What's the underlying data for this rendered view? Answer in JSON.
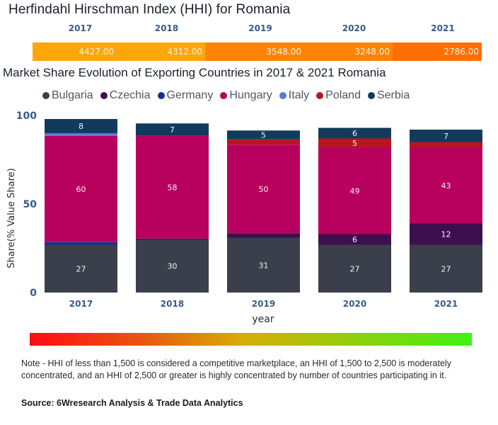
{
  "hhi": {
    "title": "Herfindahl Hirschman Index (HHI) for Romania",
    "cells": [
      {
        "year": "2017",
        "value": "4427.00",
        "color": "#fca60a"
      },
      {
        "year": "2018",
        "value": "4312.00",
        "color": "#fca60a"
      },
      {
        "year": "2019",
        "value": "3548.00",
        "color": "#fd8405"
      },
      {
        "year": "2020",
        "value": "3248.00",
        "color": "#fd8405"
      },
      {
        "year": "2021",
        "value": "2786.00",
        "color": "#fe6f02"
      }
    ]
  },
  "chart_data": {
    "type": "bar",
    "stacked": true,
    "title": "Market Share Evolution of Exporting Countries in 2017 & 2021 Romania",
    "xlabel": "year",
    "ylabel": "Share(% Value Share)",
    "ylim": [
      0,
      100
    ],
    "yticks": [
      "0",
      "50",
      "100"
    ],
    "categories": [
      "2017",
      "2018",
      "2019",
      "2020",
      "2021"
    ],
    "legend_position": "top",
    "series": [
      {
        "name": "Bulgaria",
        "color": "#3a3f4b",
        "values": [
          27,
          30,
          31,
          27,
          27
        ],
        "labels": [
          "27",
          "30",
          "31",
          "27",
          "27"
        ]
      },
      {
        "name": "Czechia",
        "color": "#3e0f4f",
        "values": [
          0,
          0.5,
          2.5,
          6,
          12
        ],
        "labels": [
          "",
          "",
          "",
          "6",
          "12"
        ]
      },
      {
        "name": "Germany",
        "color": "#1c2b9a",
        "values": [
          1.5,
          0,
          0,
          0,
          0
        ],
        "labels": [
          "",
          "",
          "",
          "",
          ""
        ]
      },
      {
        "name": "Hungary",
        "color": "#b8005f",
        "values": [
          60,
          58,
          50,
          49,
          43
        ],
        "labels": [
          "60",
          "58",
          "50",
          "49",
          "43"
        ]
      },
      {
        "name": "Italy",
        "color": "#5b79d6",
        "values": [
          1.5,
          0,
          0,
          0,
          0
        ],
        "labels": [
          "",
          "",
          "",
          "",
          ""
        ]
      },
      {
        "name": "Poland",
        "color": "#b8161e",
        "values": [
          0,
          0,
          3,
          5,
          3
        ],
        "labels": [
          "",
          "",
          "",
          "5",
          ""
        ]
      },
      {
        "name": "Serbia",
        "color": "#123a5c",
        "values": [
          8,
          7,
          5,
          6,
          7
        ],
        "labels": [
          "8",
          "7",
          "5",
          "6",
          "7"
        ]
      }
    ]
  },
  "gradient": {
    "colors": [
      "#ff0a14",
      "#d8ad06",
      "#3ff214"
    ]
  },
  "footer": {
    "note": "Note - HHI of less than 1,500 is considered a competitive marketplace, an HHI of 1,500 to 2,500 is moderately concentrated, and an HHI of 2,500 or greater is highly concentrated by number of countries participating in it.",
    "source": "Source: 6Wresearch Analysis & Trade Data Analytics"
  }
}
